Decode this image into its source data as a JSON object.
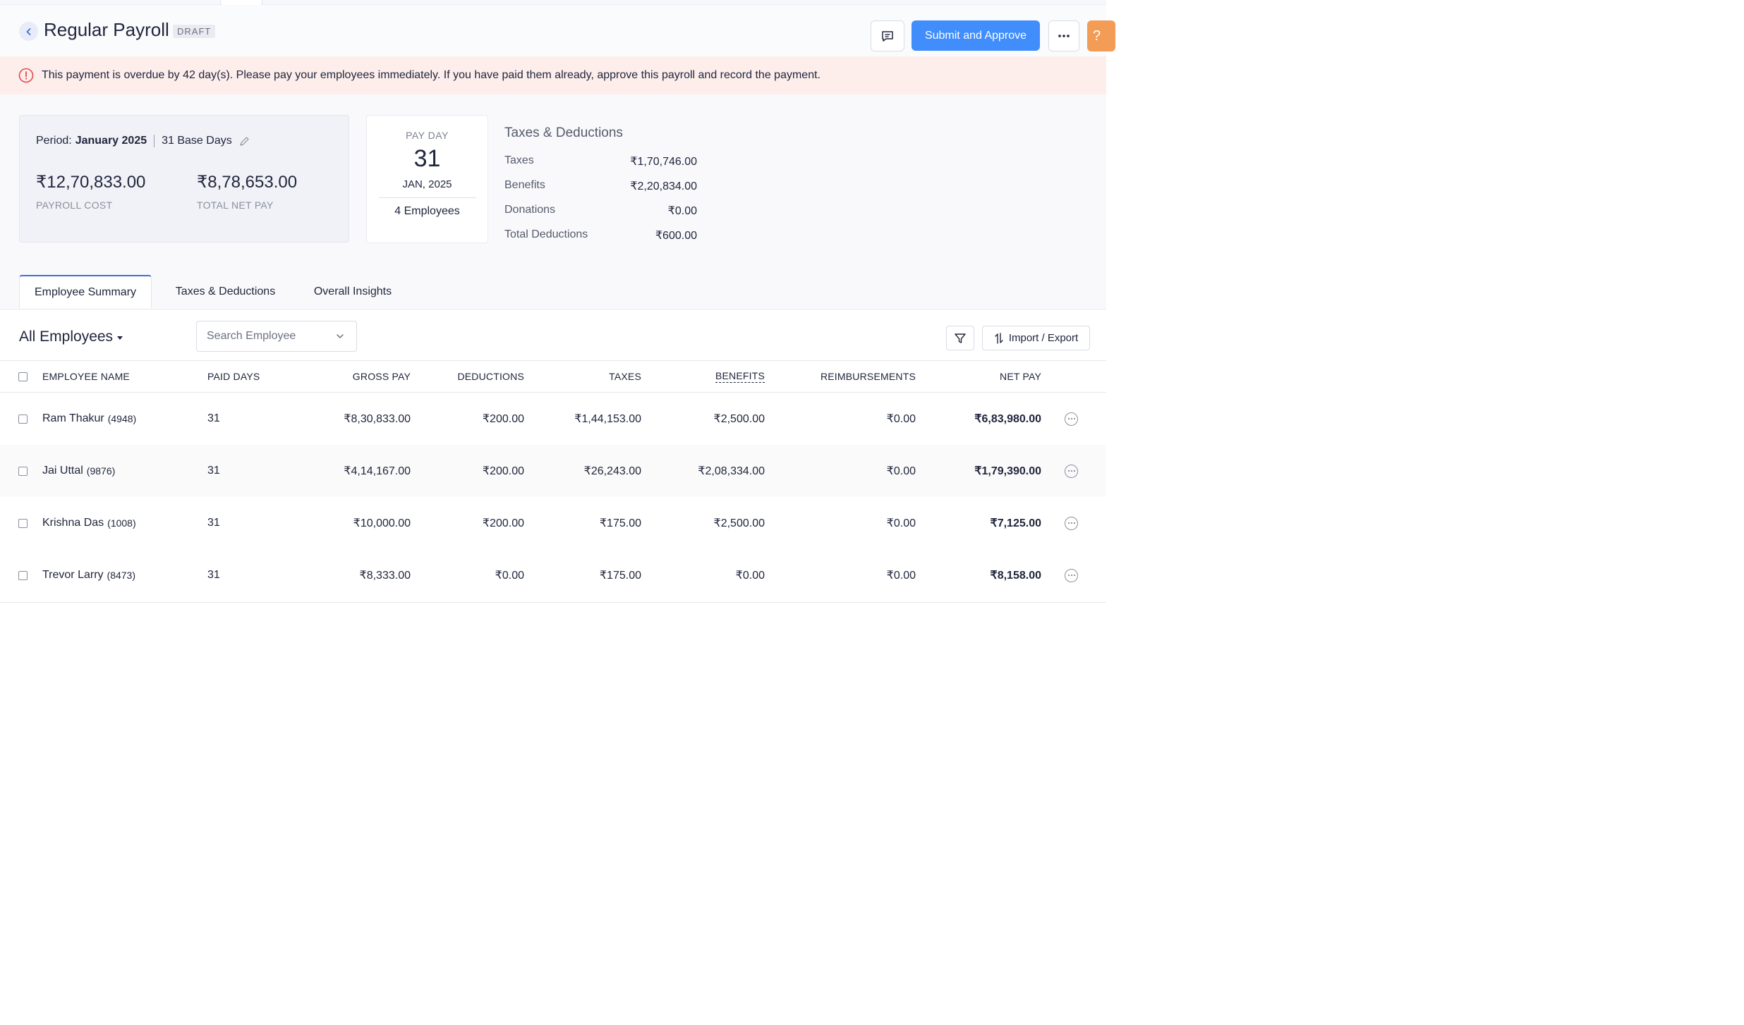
{
  "header": {
    "title": "Regular Payroll",
    "status_badge": "DRAFT",
    "submit_label": "Submit and Approve",
    "help_label": "?"
  },
  "alert": {
    "message": "This payment is overdue by 42 day(s). Please pay your employees immediately. If you have paid them already, approve this payroll and record the payment."
  },
  "period": {
    "label": "Period:",
    "value": "January 2025",
    "base_days": "31 Base Days",
    "payroll_cost": "₹12,70,833.00",
    "payroll_cost_label": "PAYROLL COST",
    "net_pay": "₹8,78,653.00",
    "net_pay_label": "TOTAL NET PAY"
  },
  "payday": {
    "label": "PAY DAY",
    "day": "31",
    "month_year": "JAN, 2025",
    "employees": "4 Employees"
  },
  "taxes": {
    "title": "Taxes & Deductions",
    "rows": [
      {
        "label": "Taxes",
        "value": "₹1,70,746.00"
      },
      {
        "label": "Benefits",
        "value": "₹2,20,834.00"
      },
      {
        "label": "Donations",
        "value": "₹0.00"
      },
      {
        "label": "Total Deductions",
        "value": "₹600.00"
      }
    ]
  },
  "tabs": [
    "Employee Summary",
    "Taxes & Deductions",
    "Overall Insights"
  ],
  "toolbar": {
    "view_label": "All Employees",
    "search_placeholder": "Search Employee",
    "import_export_label": "Import / Export"
  },
  "table": {
    "columns": [
      "EMPLOYEE NAME",
      "PAID DAYS",
      "GROSS PAY",
      "DEDUCTIONS",
      "TAXES",
      "BENEFITS",
      "REIMBURSEMENTS",
      "NET PAY"
    ],
    "rows": [
      {
        "name": "Ram Thakur",
        "id": "(4948)",
        "paid_days": "31",
        "gross": "₹8,30,833.00",
        "deductions": "₹200.00",
        "taxes": "₹1,44,153.00",
        "benefits": "₹2,500.00",
        "reimbursements": "₹0.00",
        "net": "₹6,83,980.00"
      },
      {
        "name": "Jai Uttal",
        "id": "(9876)",
        "paid_days": "31",
        "gross": "₹4,14,167.00",
        "deductions": "₹200.00",
        "taxes": "₹26,243.00",
        "benefits": "₹2,08,334.00",
        "reimbursements": "₹0.00",
        "net": "₹1,79,390.00"
      },
      {
        "name": "Krishna Das",
        "id": "(1008)",
        "paid_days": "31",
        "gross": "₹10,000.00",
        "deductions": "₹200.00",
        "taxes": "₹175.00",
        "benefits": "₹2,500.00",
        "reimbursements": "₹0.00",
        "net": "₹7,125.00"
      },
      {
        "name": "Trevor Larry",
        "id": "(8473)",
        "paid_days": "31",
        "gross": "₹8,333.00",
        "deductions": "₹0.00",
        "taxes": "₹175.00",
        "benefits": "₹0.00",
        "reimbursements": "₹0.00",
        "net": "₹8,158.00"
      }
    ]
  },
  "colors": {
    "primary": "#408dfb",
    "alert_bg": "#fdeeec",
    "alert_icon": "#e5484d",
    "help": "#f39c55"
  },
  "icons": [
    "back-arrow-icon",
    "comment-icon",
    "more-horizontal-icon",
    "alert-circle-icon",
    "pencil-icon",
    "chevron-down-icon",
    "filter-icon",
    "import-export-icon",
    "row-menu-icon"
  ]
}
